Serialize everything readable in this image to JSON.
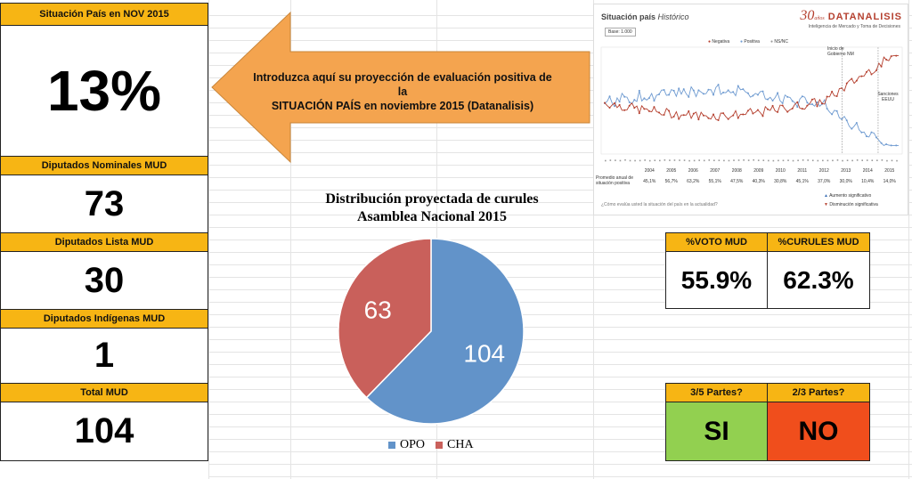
{
  "kpis": [
    {
      "label": "Situación País en NOV 2015",
      "value": "13%"
    },
    {
      "label": "Diputados Nominales MUD",
      "value": "73"
    },
    {
      "label": "Diputados Lista MUD",
      "value": "30"
    },
    {
      "label": "Diputados Indígenas MUD",
      "value": "1"
    },
    {
      "label": "Total MUD",
      "value": "104"
    }
  ],
  "arrow_note": {
    "line1": "Introduzca aquí su proyección de  evaluación positiva de la",
    "line2": "SITUACIÓN PAÍS en noviembre 2015 (Datanalisis)"
  },
  "vote_box": {
    "voto_label": "%VOTO MUD",
    "voto_value": "55.9%",
    "curules_label": "%CURULES MUD",
    "curules_value": "62.3%"
  },
  "majority_box": {
    "tres_quintos_label": "3/5 Partes?",
    "tres_quintos_value": "SI",
    "dos_tercios_label": "2/3 Partes?",
    "dos_tercios_value": "NO",
    "colors": {
      "si": "#92d050",
      "no": "#f04e1c"
    }
  },
  "thumbnail": {
    "title": "Situación país",
    "title_italic": "Histórico",
    "base": "Base: 1.000",
    "logo_number": "30",
    "logo_sup": "años",
    "logo_name": "DATANALISIS",
    "logo_sub": "Inteligencia de Mercado y Toma de Decisiones",
    "legend": [
      "Negativa",
      "Positiva",
      "NS/NC"
    ],
    "annotations": [
      "Inicio de Gobierno NM",
      "Sanciones EEUU"
    ],
    "years": [
      "2004",
      "2005",
      "2006",
      "2007",
      "2008",
      "2009",
      "2010",
      "2011",
      "2012",
      "2013",
      "2014",
      "2015"
    ],
    "row_label": "Promedio anual de situación positiva",
    "row_values": [
      "45,1%",
      "56,7%",
      "63,2%",
      "55,1%",
      "47,5%",
      "40,3%",
      "30,8%",
      "45,1%",
      "37,0%",
      "30,0%",
      "10,4%",
      "14,0%"
    ],
    "footer_question": "¿Cómo evalúa usted la situación del país en la actualidad?",
    "footer_legend": [
      "Aumento significativo",
      "Disminución significativa"
    ],
    "colors": {
      "negativa": "#b5402f",
      "positiva": "#6f9bd1",
      "nsnc": "#9a9a9a"
    }
  },
  "chart_data": {
    "type": "pie",
    "title": "Distribución proyectada de curules",
    "subtitle": "Asamblea Nacional 2015",
    "categories": [
      "OPO",
      "CHA"
    ],
    "values": [
      104,
      63
    ],
    "colors": [
      "#6293c9",
      "#c9605b"
    ],
    "legend_position": "bottom"
  }
}
